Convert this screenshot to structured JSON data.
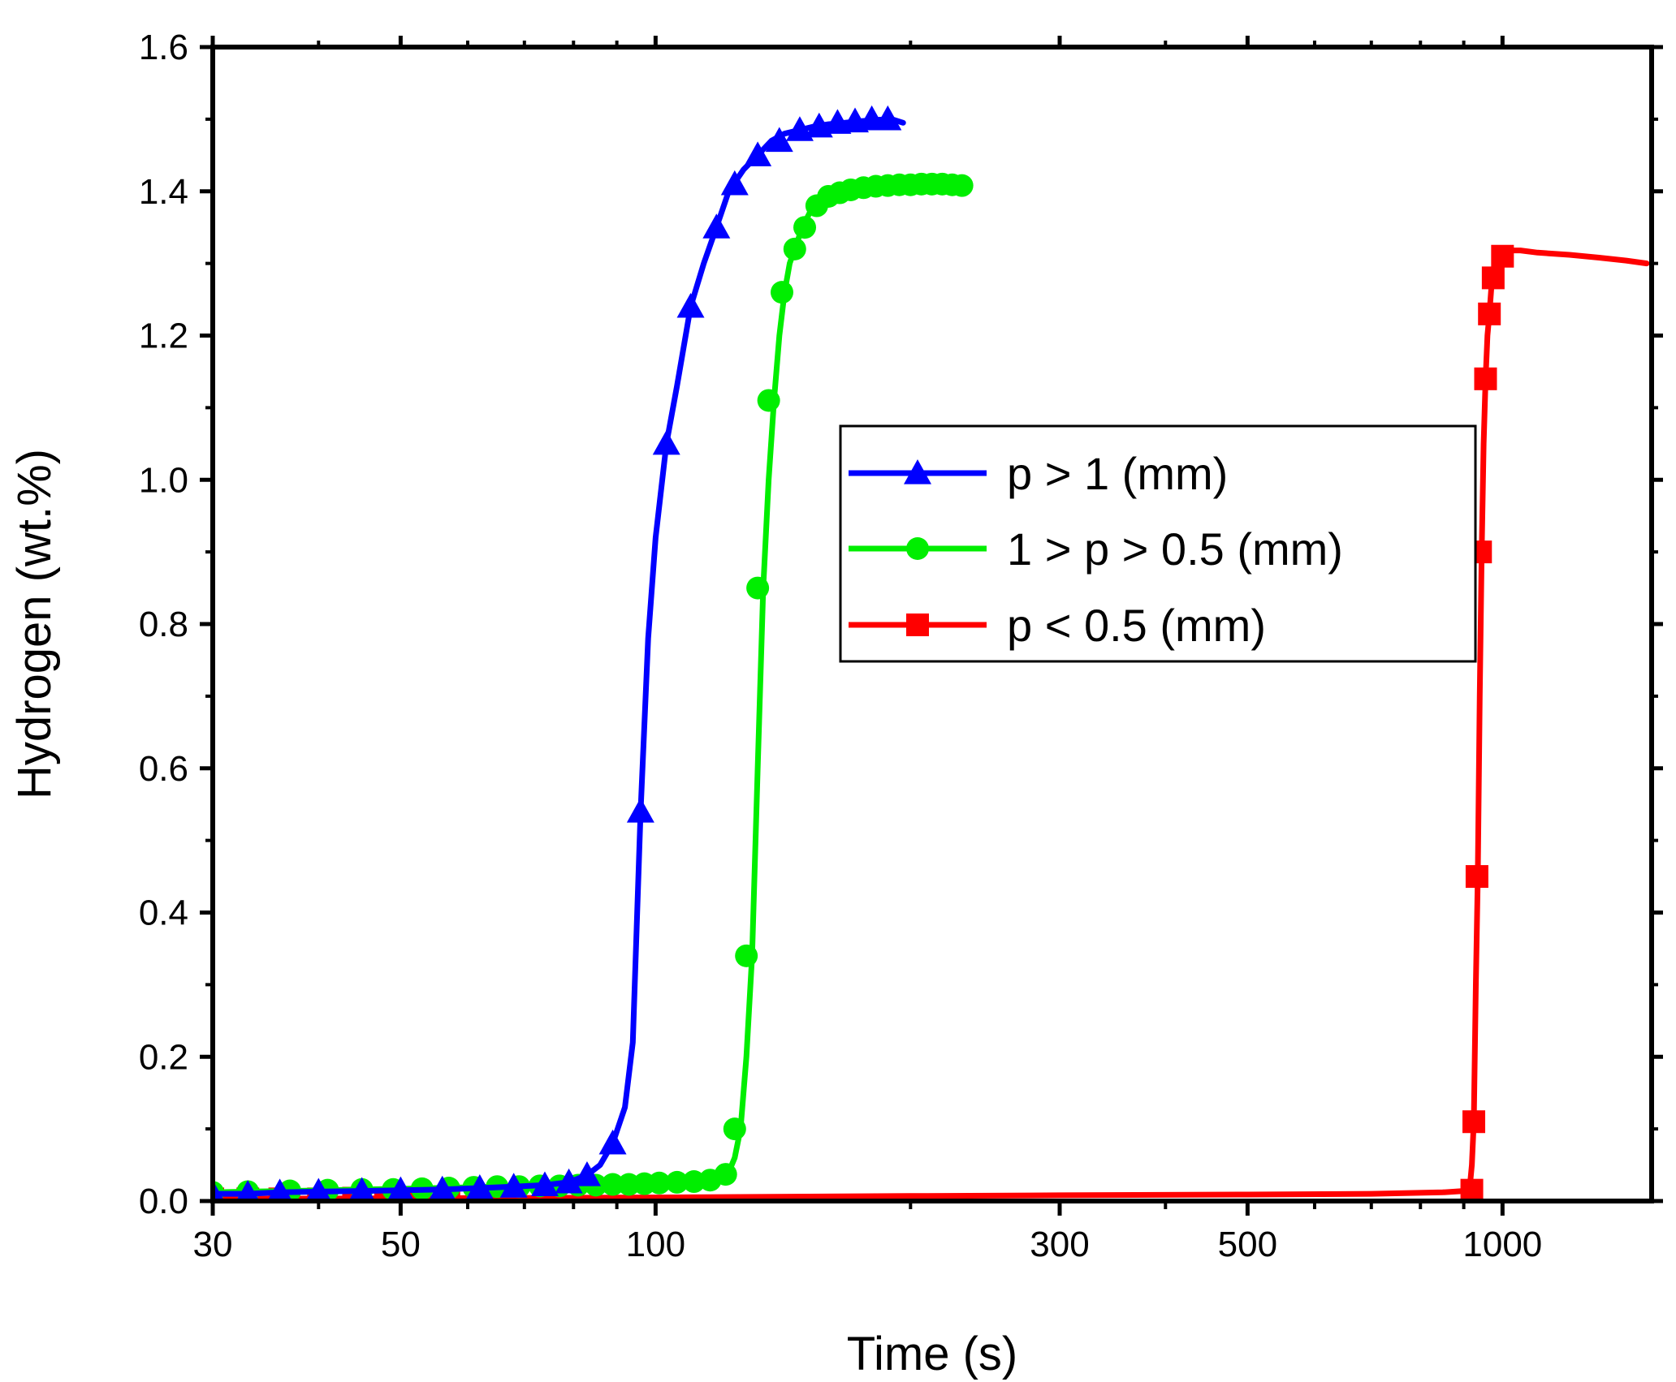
{
  "chart_data": {
    "type": "line",
    "title": "",
    "xlabel": "Time (s)",
    "ylabel": "Hydrogen (wt.%)",
    "xscale": "log",
    "xlim": [
      30,
      1500
    ],
    "ylim": [
      0,
      1.6
    ],
    "xticks": [
      {
        "value": 30,
        "label": "30"
      },
      {
        "value": 50,
        "label": "50"
      },
      {
        "value": 100,
        "label": "100"
      },
      {
        "value": 300,
        "label": "300"
      },
      {
        "value": 500,
        "label": "500"
      },
      {
        "value": 1000,
        "label": "1000"
      }
    ],
    "yticks": [
      {
        "value": 0.0,
        "label": "0.0"
      },
      {
        "value": 0.2,
        "label": "0.2"
      },
      {
        "value": 0.4,
        "label": "0.4"
      },
      {
        "value": 0.6,
        "label": "0.6"
      },
      {
        "value": 0.8,
        "label": "0.8"
      },
      {
        "value": 1.0,
        "label": "1.0"
      },
      {
        "value": 1.2,
        "label": "1.2"
      },
      {
        "value": 1.4,
        "label": "1.4"
      },
      {
        "value": 1.6,
        "label": "1.6"
      }
    ],
    "grid": false,
    "legend_position": "center-right",
    "series": [
      {
        "name": "p > 1 (mm)",
        "color": "#0000ff",
        "marker": "triangle",
        "points": [
          [
            30,
            0.01
          ],
          [
            33,
            0.01
          ],
          [
            36,
            0.012
          ],
          [
            40,
            0.013
          ],
          [
            45,
            0.014
          ],
          [
            50,
            0.015
          ],
          [
            56,
            0.016
          ],
          [
            62,
            0.018
          ],
          [
            68,
            0.02
          ],
          [
            74,
            0.022
          ],
          [
            79,
            0.026
          ],
          [
            83,
            0.036
          ],
          [
            86,
            0.05
          ],
          [
            89,
            0.08
          ],
          [
            92,
            0.13
          ],
          [
            94,
            0.22
          ],
          [
            96,
            0.54
          ],
          [
            98,
            0.78
          ],
          [
            100,
            0.92
          ],
          [
            103,
            1.05
          ],
          [
            106,
            1.13
          ],
          [
            110,
            1.24
          ],
          [
            114,
            1.3
          ],
          [
            118,
            1.35
          ],
          [
            122,
            1.4
          ],
          [
            127,
            1.43
          ],
          [
            132,
            1.45
          ],
          [
            137,
            1.47
          ],
          [
            142,
            1.48
          ],
          [
            148,
            1.485
          ],
          [
            154,
            1.49
          ],
          [
            160,
            1.493
          ],
          [
            167,
            1.495
          ],
          [
            174,
            1.497
          ],
          [
            182,
            1.499
          ],
          [
            190,
            1.5
          ],
          [
            196,
            1.495
          ]
        ],
        "marker_points": [
          [
            30,
            0.01
          ],
          [
            33,
            0.01
          ],
          [
            36,
            0.012
          ],
          [
            40,
            0.013
          ],
          [
            45,
            0.014
          ],
          [
            50,
            0.015
          ],
          [
            56,
            0.016
          ],
          [
            62,
            0.018
          ],
          [
            68,
            0.02
          ],
          [
            74,
            0.022
          ],
          [
            79,
            0.026
          ],
          [
            83,
            0.036
          ],
          [
            89,
            0.08
          ],
          [
            96,
            0.54
          ],
          [
            103,
            1.05
          ],
          [
            110,
            1.24
          ],
          [
            118,
            1.35
          ],
          [
            124,
            1.41
          ],
          [
            132,
            1.45
          ],
          [
            140,
            1.47
          ],
          [
            148,
            1.485
          ],
          [
            156,
            1.49
          ],
          [
            164,
            1.495
          ],
          [
            172,
            1.497
          ],
          [
            180,
            1.5
          ],
          [
            188,
            1.5
          ]
        ]
      },
      {
        "name": "1 > p > 0.5 (mm)",
        "color": "#00ee00",
        "marker": "circle",
        "points": [
          [
            30,
            0.012
          ],
          [
            33,
            0.013
          ],
          [
            37,
            0.014
          ],
          [
            41,
            0.015
          ],
          [
            45,
            0.016
          ],
          [
            50,
            0.017
          ],
          [
            55,
            0.018
          ],
          [
            60,
            0.019
          ],
          [
            66,
            0.02
          ],
          [
            72,
            0.021
          ],
          [
            80,
            0.022
          ],
          [
            90,
            0.023
          ],
          [
            100,
            0.025
          ],
          [
            110,
            0.027
          ],
          [
            118,
            0.03
          ],
          [
            122,
            0.04
          ],
          [
            124,
            0.06
          ],
          [
            126,
            0.1
          ],
          [
            128,
            0.2
          ],
          [
            130,
            0.34
          ],
          [
            132,
            0.6
          ],
          [
            134,
            0.85
          ],
          [
            136,
            1.0
          ],
          [
            138,
            1.11
          ],
          [
            140,
            1.2
          ],
          [
            142,
            1.26
          ],
          [
            144,
            1.3
          ],
          [
            146,
            1.32
          ],
          [
            149,
            1.35
          ],
          [
            152,
            1.37
          ],
          [
            156,
            1.385
          ],
          [
            160,
            1.393
          ],
          [
            165,
            1.398
          ],
          [
            170,
            1.402
          ],
          [
            176,
            1.405
          ],
          [
            182,
            1.407
          ],
          [
            190,
            1.408
          ],
          [
            200,
            1.409
          ],
          [
            210,
            1.41
          ],
          [
            220,
            1.41
          ],
          [
            230,
            1.408
          ]
        ],
        "marker_points": [
          [
            30,
            0.012
          ],
          [
            33,
            0.013
          ],
          [
            37,
            0.014
          ],
          [
            41,
            0.015
          ],
          [
            45,
            0.016
          ],
          [
            49,
            0.016
          ],
          [
            53,
            0.017
          ],
          [
            57,
            0.018
          ],
          [
            61,
            0.019
          ],
          [
            65,
            0.02
          ],
          [
            69,
            0.02
          ],
          [
            73,
            0.021
          ],
          [
            77,
            0.021
          ],
          [
            81,
            0.022
          ],
          [
            85,
            0.022
          ],
          [
            89,
            0.023
          ],
          [
            93,
            0.023
          ],
          [
            97,
            0.024
          ],
          [
            101,
            0.025
          ],
          [
            106,
            0.026
          ],
          [
            111,
            0.027
          ],
          [
            116,
            0.029
          ],
          [
            121,
            0.037
          ],
          [
            124,
            0.1
          ],
          [
            128,
            0.34
          ],
          [
            132,
            0.85
          ],
          [
            136,
            1.11
          ],
          [
            141,
            1.26
          ],
          [
            146,
            1.32
          ],
          [
            150,
            1.35
          ],
          [
            155,
            1.38
          ],
          [
            160,
            1.393
          ],
          [
            165,
            1.398
          ],
          [
            170,
            1.402
          ],
          [
            176,
            1.405
          ],
          [
            182,
            1.407
          ],
          [
            188,
            1.408
          ],
          [
            194,
            1.409
          ],
          [
            200,
            1.409
          ],
          [
            206,
            1.41
          ],
          [
            212,
            1.41
          ],
          [
            218,
            1.41
          ],
          [
            224,
            1.409
          ],
          [
            230,
            1.408
          ]
        ]
      },
      {
        "name": "p < 0.5 (mm)",
        "color": "#ff0000",
        "marker": "square",
        "points": [
          [
            30,
            0.003
          ],
          [
            60,
            0.004
          ],
          [
            100,
            0.005
          ],
          [
            200,
            0.007
          ],
          [
            300,
            0.008
          ],
          [
            500,
            0.009
          ],
          [
            700,
            0.01
          ],
          [
            850,
            0.012
          ],
          [
            900,
            0.014
          ],
          [
            915,
            0.02
          ],
          [
            920,
            0.05
          ],
          [
            925,
            0.11
          ],
          [
            930,
            0.3
          ],
          [
            935,
            0.45
          ],
          [
            940,
            0.7
          ],
          [
            945,
            0.9
          ],
          [
            950,
            1.05
          ],
          [
            955,
            1.14
          ],
          [
            960,
            1.2
          ],
          [
            965,
            1.23
          ],
          [
            972,
            1.28
          ],
          [
            980,
            1.3
          ],
          [
            990,
            1.31
          ],
          [
            1000,
            1.315
          ],
          [
            1020,
            1.318
          ],
          [
            1050,
            1.318
          ],
          [
            1100,
            1.315
          ],
          [
            1200,
            1.312
          ],
          [
            1300,
            1.308
          ],
          [
            1400,
            1.304
          ],
          [
            1480,
            1.3
          ]
        ],
        "marker_points": [
          [
            30,
            0.003
          ],
          [
            33,
            0.003
          ],
          [
            36,
            0.003
          ],
          [
            40,
            0.003
          ],
          [
            44,
            0.004
          ],
          [
            48,
            0.004
          ],
          [
            52,
            0.004
          ],
          [
            57,
            0.004
          ],
          [
            920,
            0.015
          ],
          [
            925,
            0.11
          ],
          [
            933,
            0.45
          ],
          [
            942,
            0.9
          ],
          [
            955,
            1.14
          ],
          [
            965,
            1.23
          ],
          [
            975,
            1.28
          ],
          [
            1000,
            1.31
          ]
        ]
      }
    ]
  }
}
